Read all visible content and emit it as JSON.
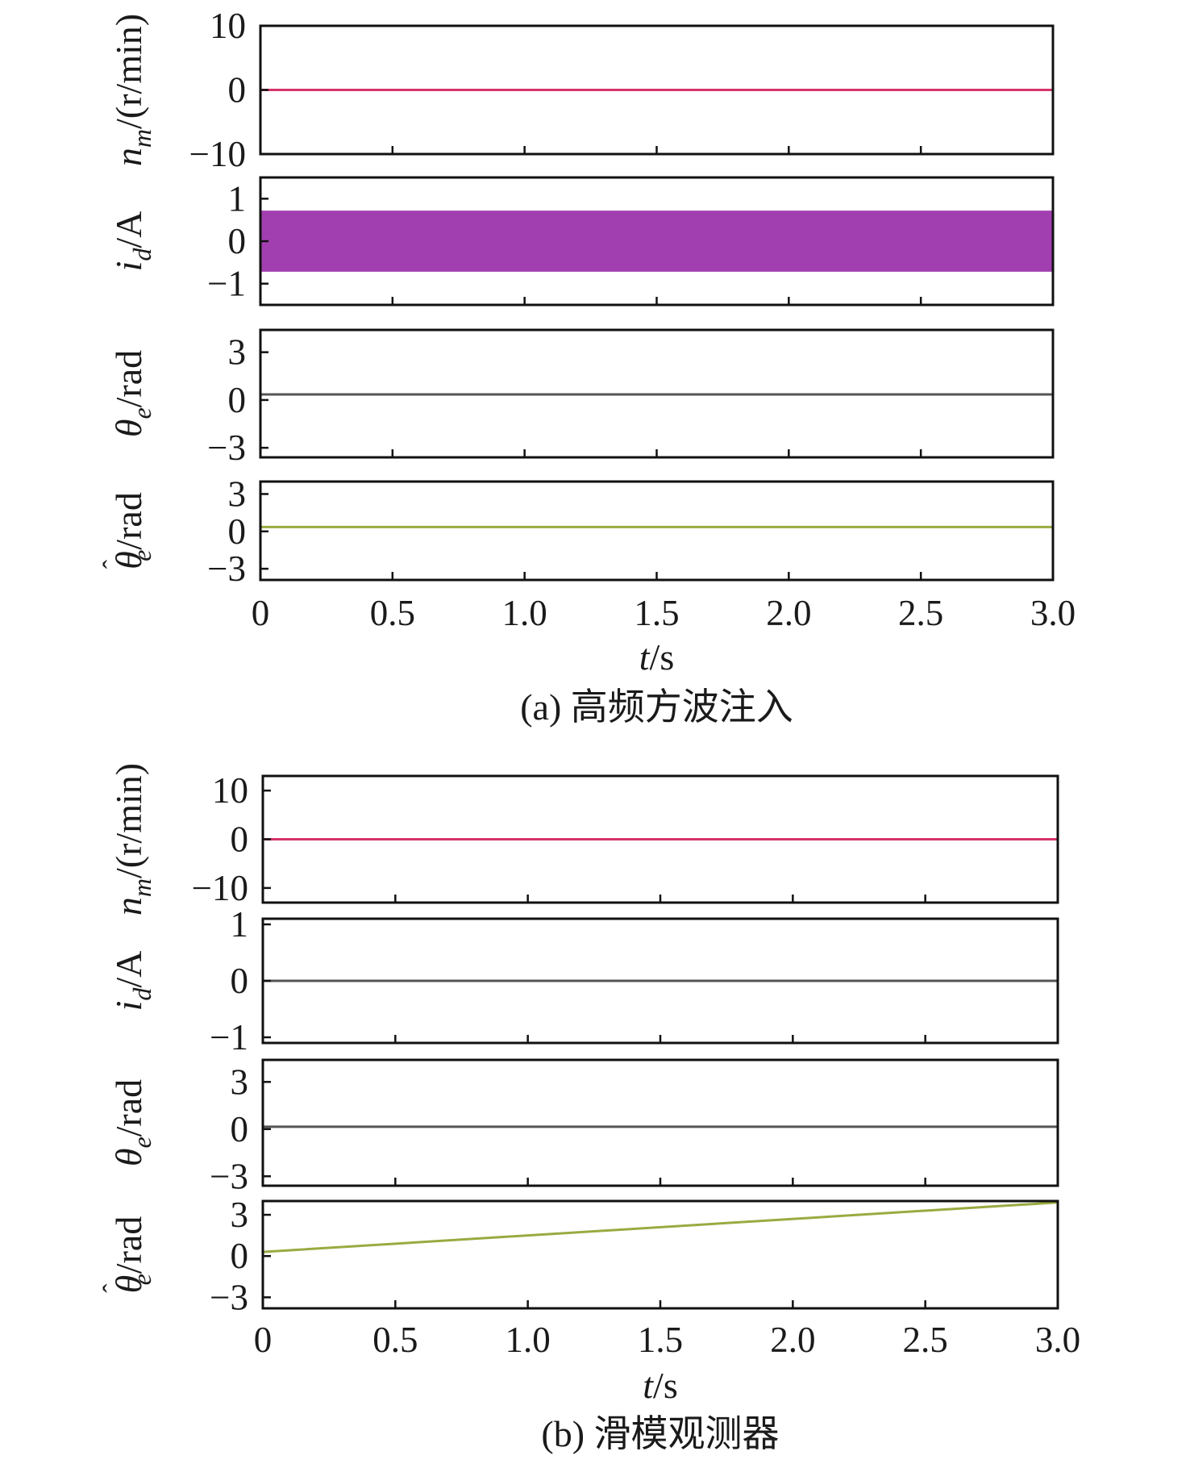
{
  "chart_data": [
    {
      "type": "line",
      "panel_group": "a",
      "caption": "(a) 高频方波注入",
      "xlabel": "t/s",
      "xlim": [
        0,
        3.0
      ],
      "xticks": [
        "0",
        "0.5",
        "1.0",
        "1.5",
        "2.0",
        "2.5",
        "3.0"
      ],
      "subplots": [
        {
          "ylabel": "n_m/(r/min)",
          "ylim": [
            -10,
            10
          ],
          "yticks": [
            "10",
            "0",
            "−10"
          ],
          "series": [
            {
              "color": "#d6336c",
              "x": [
                0,
                3.0
              ],
              "y": [
                0,
                0
              ]
            }
          ]
        },
        {
          "ylabel": "i_d/A",
          "ylim": [
            -1.5,
            1.5
          ],
          "yticks": [
            "1",
            "0",
            "−1"
          ],
          "series": [
            {
              "color": "#a23fb0",
              "band": true,
              "x": [
                0,
                3.0
              ],
              "y_low": [
                -0.72,
                -0.72
              ],
              "y_high": [
                0.72,
                0.72
              ]
            }
          ]
        },
        {
          "ylabel": "θ_e/rad",
          "ylim": [
            -3.6,
            4.4
          ],
          "yticks": [
            "3",
            "0",
            "−3"
          ],
          "series": [
            {
              "color": "#555555",
              "x": [
                0,
                3.0
              ],
              "y": [
                0.35,
                0.35
              ]
            }
          ]
        },
        {
          "ylabel": "θ̂_e/rad",
          "ylim": [
            -3.9,
            4.0
          ],
          "yticks": [
            "3",
            "0",
            "−3"
          ],
          "series": [
            {
              "color": "#9aaa40",
              "x": [
                0,
                3.0
              ],
              "y": [
                0.35,
                0.35
              ]
            }
          ]
        }
      ]
    },
    {
      "type": "line",
      "panel_group": "b",
      "caption": "(b) 滑模观测器",
      "xlabel": "t/s",
      "xlim": [
        0,
        3.0
      ],
      "xticks": [
        "0",
        "0.5",
        "1.0",
        "1.5",
        "2.0",
        "2.5",
        "3.0"
      ],
      "subplots": [
        {
          "ylabel": "n_m/(r/min)",
          "ylim": [
            -13,
            13
          ],
          "yticks": [
            "10",
            "0",
            "−10"
          ],
          "series": [
            {
              "color": "#d6336c",
              "x": [
                0,
                3.0
              ],
              "y": [
                0,
                0
              ]
            }
          ]
        },
        {
          "ylabel": "i_d/A",
          "ylim": [
            -1.1,
            1.1
          ],
          "yticks": [
            "1",
            "0",
            "−1"
          ],
          "series": [
            {
              "color": "#555555",
              "x": [
                0,
                3.0
              ],
              "y": [
                0,
                0
              ]
            }
          ]
        },
        {
          "ylabel": "θ_e/rad",
          "ylim": [
            -3.6,
            4.4
          ],
          "yticks": [
            "3",
            "0",
            "−3"
          ],
          "series": [
            {
              "color": "#555555",
              "x": [
                0,
                3.0
              ],
              "y": [
                0.15,
                0.15
              ]
            }
          ]
        },
        {
          "ylabel": "θ̂_e/rad",
          "ylim": [
            -3.8,
            4.0
          ],
          "yticks": [
            "3",
            "0",
            "−3"
          ],
          "series": [
            {
              "color": "#9aaa40",
              "x": [
                0,
                3.0
              ],
              "y": [
                0.3,
                3.9
              ]
            }
          ]
        }
      ]
    }
  ]
}
